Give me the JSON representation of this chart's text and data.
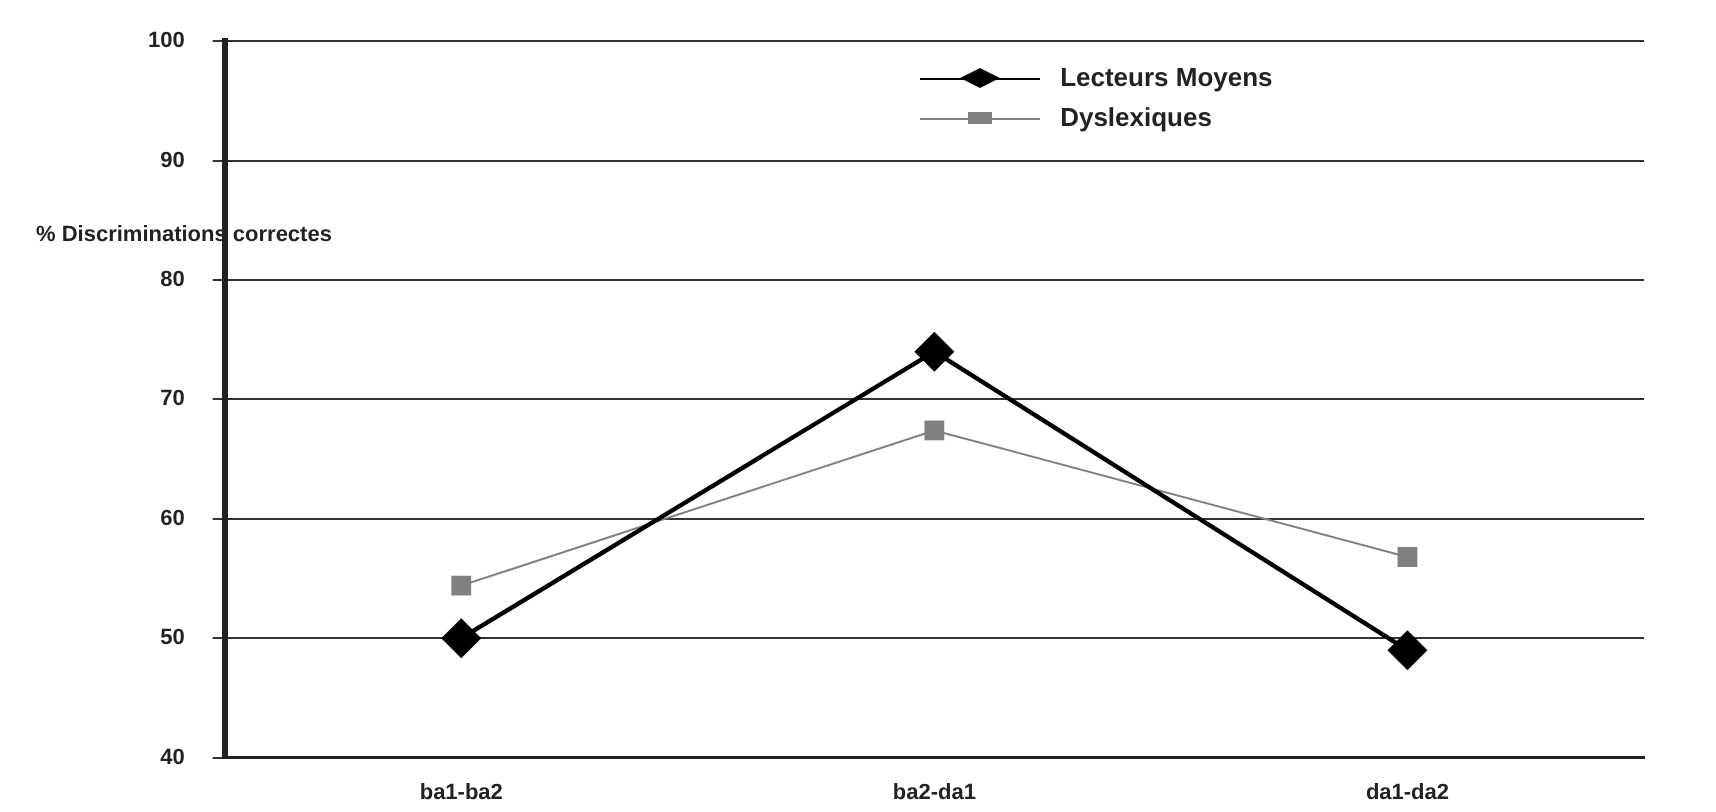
{
  "chart_data": {
    "type": "line",
    "ylabel": "% Discriminations correctes",
    "categories": [
      "ba1-ba2",
      "ba2-da1",
      "da1-da2"
    ],
    "series": [
      {
        "name": "Lecteurs Moyens",
        "color": "#000000",
        "marker": "diamond",
        "values": [
          50,
          74,
          49
        ]
      },
      {
        "name": "Dyslexiques",
        "color": "#808080",
        "marker": "square",
        "values": [
          54.4,
          67.4,
          56.8
        ]
      }
    ],
    "ylim": [
      40,
      100
    ],
    "yticks": [
      40,
      50,
      60,
      70,
      80,
      90,
      100
    ],
    "grid": "y",
    "legend": "top right",
    "line_style": "solid"
  }
}
